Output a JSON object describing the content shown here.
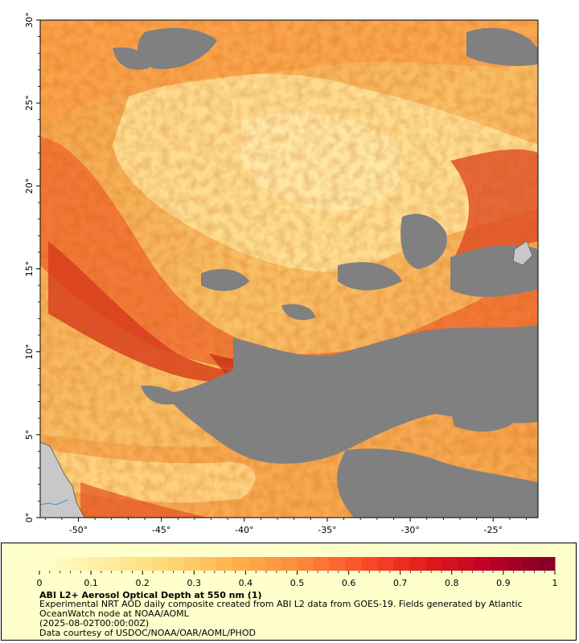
{
  "map": {
    "lat_ticks": [
      "30°",
      "25°",
      "20°",
      "15°",
      "10°",
      "5°",
      "0°"
    ],
    "lon_ticks": [
      "-50°",
      "-45°",
      "-40°",
      "-35°",
      "-30°",
      "-25°"
    ],
    "lat_values": [
      30,
      25,
      20,
      15,
      10,
      5,
      0
    ],
    "lon_values": [
      -50,
      -45,
      -40,
      -35,
      -30,
      -25
    ],
    "lat_range": [
      0,
      30
    ],
    "lon_range": [
      -52.3,
      -22.3
    ],
    "colors": {
      "no_data": "#808080",
      "land": "#c8c8c8",
      "river": "#4a8fd0"
    }
  },
  "legend": {
    "ticks": [
      "0",
      "0.1",
      "0.2",
      "0.3",
      "0.4",
      "0.5",
      "0.6",
      "0.7",
      "0.8",
      "0.9",
      "1"
    ],
    "tick_values": [
      0,
      0.1,
      0.2,
      0.3,
      0.4,
      0.5,
      0.6,
      0.7,
      0.8,
      0.9,
      1
    ],
    "range": [
      0,
      1
    ],
    "steps": 32,
    "colormap": [
      "#ffffcc",
      "#ffeda0",
      "#fed976",
      "#feb24c",
      "#fd8d3c",
      "#fc4e2a",
      "#e31a1c",
      "#bd0026",
      "#800026"
    ],
    "title": "ABI L2+ Aerosol Optical Depth at 550 nm (1)",
    "line1": "Experimental NRT AOD daily composite created from ABI L2 data from GOES-19. Fields generated by Atlantic",
    "line2": "OceanWatch node at NOAA/AOML",
    "line3": "(2025-08-02T00:00:00Z)",
    "line4": "Data courtesy of USDOC/NOAA/OAR/AOML/PHOD"
  }
}
